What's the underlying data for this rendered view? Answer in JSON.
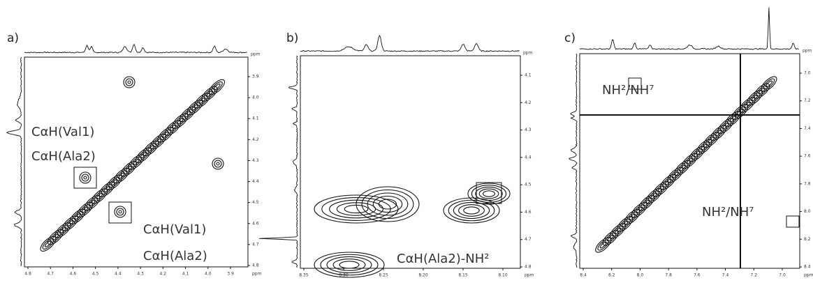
{
  "panels": [
    {
      "label": "a)",
      "unit": "ppm",
      "annotations": [
        "CαH(Val1)",
        "CαH(Ala2)",
        "CαH(Val1)",
        "CαH(Ala2)"
      ],
      "x_ticks": [
        "4.8",
        "4.7",
        "4.6",
        "4.5",
        "4.4",
        "4.3",
        "4.2",
        "4.1",
        "4.0",
        "3.9"
      ],
      "y_ticks": [
        "3.9",
        "4.0",
        "4.1",
        "4.2",
        "4.3",
        "4.4",
        "4.5",
        "4.6",
        "4.7",
        "4.8"
      ]
    },
    {
      "label": "b)",
      "unit": "ppm",
      "annotations": [
        "CαH(Ala2)-NH²"
      ],
      "x_ticks": [
        "8.35",
        "8.30",
        "8.25",
        "8.20",
        "8.15",
        "8.10"
      ],
      "y_ticks": [
        "4.1",
        "4.2",
        "4.3",
        "4.4",
        "4.5",
        "4.6",
        "4.7",
        "4.8"
      ]
    },
    {
      "label": "c)",
      "unit": "ppm",
      "annotations": [
        "NH²/NH⁷",
        "NH²/NH⁷"
      ],
      "x_ticks": [
        "8.4",
        "8.2",
        "8.0",
        "7.8",
        "7.6",
        "7.4",
        "7.2",
        "7.0"
      ],
      "y_ticks": [
        "7.0",
        "7.2",
        "7.4",
        "7.6",
        "7.8",
        "8.0",
        "8.2",
        "8.4"
      ]
    }
  ]
}
